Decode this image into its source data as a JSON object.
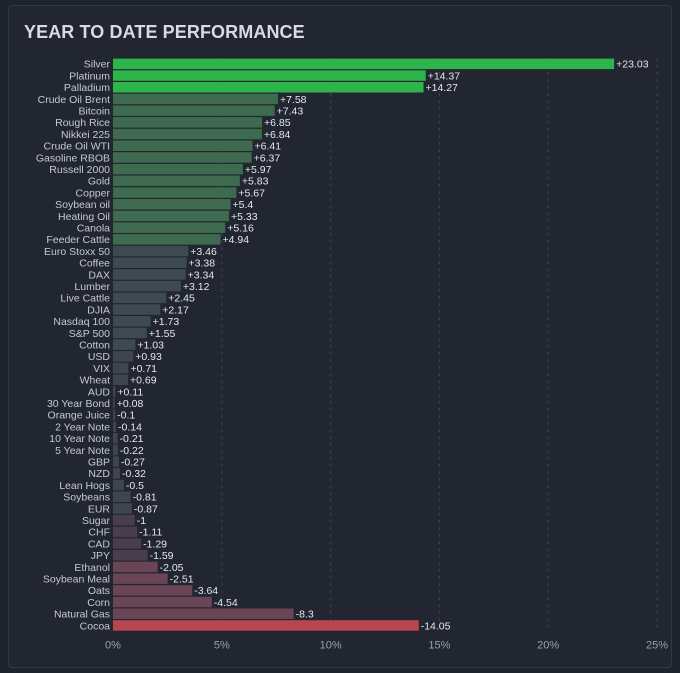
{
  "chart_data": {
    "type": "bar",
    "orientation": "horizontal",
    "title": "YEAR TO DATE PERFORMANCE",
    "xlim": [
      0,
      25
    ],
    "xticks": [
      0,
      5,
      10,
      15,
      20,
      25
    ],
    "xtick_labels": [
      "0%",
      "5%",
      "10%",
      "15%",
      "20%",
      "25%"
    ],
    "categories": [
      "Silver",
      "Platinum",
      "Palladium",
      "Crude Oil Brent",
      "Bitcoin",
      "Rough Rice",
      "Nikkei 225",
      "Crude Oil WTI",
      "Gasoline RBOB",
      "Russell 2000",
      "Gold",
      "Copper",
      "Soybean oil",
      "Heating Oil",
      "Canola",
      "Feeder Cattle",
      "Euro Stoxx 50",
      "Coffee",
      "DAX",
      "Lumber",
      "Live Cattle",
      "DJIA",
      "Nasdaq 100",
      "S&P 500",
      "Cotton",
      "USD",
      "VIX",
      "Wheat",
      "AUD",
      "30 Year Bond",
      "Orange Juice",
      "2 Year Note",
      "10 Year Note",
      "5 Year Note",
      "GBP",
      "NZD",
      "Lean Hogs",
      "Soybeans",
      "EUR",
      "Sugar",
      "CHF",
      "CAD",
      "JPY",
      "Ethanol",
      "Soybean Meal",
      "Oats",
      "Corn",
      "Natural Gas",
      "Cocoa"
    ],
    "values": [
      23.03,
      14.37,
      14.27,
      7.58,
      7.43,
      6.85,
      6.84,
      6.41,
      6.37,
      5.97,
      5.83,
      5.67,
      5.4,
      5.33,
      5.16,
      4.94,
      3.46,
      3.38,
      3.34,
      3.12,
      2.45,
      2.17,
      1.73,
      1.55,
      1.03,
      0.93,
      0.71,
      0.69,
      0.11,
      0.08,
      -0.1,
      -0.14,
      -0.21,
      -0.22,
      -0.27,
      -0.32,
      -0.5,
      -0.81,
      -0.87,
      -1,
      -1.11,
      -1.29,
      -1.59,
      -2.05,
      -2.51,
      -3.64,
      -4.54,
      -8.3,
      -14.05
    ],
    "value_labels": [
      "+23.03",
      "+14.37",
      "+14.27",
      "+7.58",
      "+7.43",
      "+6.85",
      "+6.84",
      "+6.41",
      "+6.37",
      "+5.97",
      "+5.83",
      "+5.67",
      "+5.4",
      "+5.33",
      "+5.16",
      "+4.94",
      "+3.46",
      "+3.38",
      "+3.34",
      "+3.12",
      "+2.45",
      "+2.17",
      "+1.73",
      "+1.55",
      "+1.03",
      "+0.93",
      "+0.71",
      "+0.69",
      "+0.11",
      "+0.08",
      "-0.1",
      "-0.14",
      "-0.21",
      "-0.22",
      "-0.27",
      "-0.32",
      "-0.5",
      "-0.81",
      "-0.87",
      "-1",
      "-1.11",
      "-1.29",
      "-1.59",
      "-2.05",
      "-2.51",
      "-3.64",
      "-4.54",
      "-8.3",
      "-14.05"
    ],
    "colors": {
      "positive_strong": "#2db44a",
      "positive_mid": "#3e6b4f",
      "positive_weak": "#3d4a52",
      "neutral": "#3f4450",
      "negative_weak": "#4a3e4d",
      "negative_mid": "#6a4556",
      "negative_strong": "#b84650"
    },
    "grid": true
  }
}
